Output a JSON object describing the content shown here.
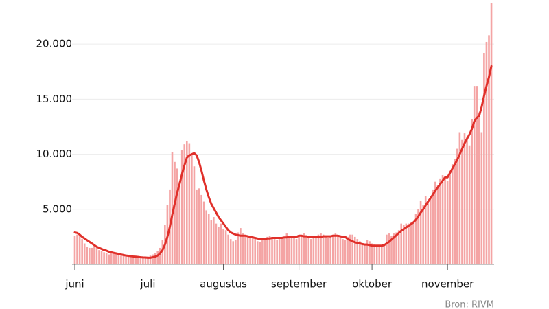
{
  "chart_data": {
    "type": "bar_line",
    "source": "Bron: RIVM",
    "categories": [
      "juni",
      null,
      null,
      null,
      null,
      null,
      null,
      null,
      null,
      null,
      null,
      null,
      null,
      null,
      null,
      null,
      null,
      null,
      null,
      null,
      null,
      null,
      null,
      null,
      null,
      null,
      null,
      null,
      null,
      null,
      "juli",
      null,
      null,
      null,
      null,
      null,
      null,
      null,
      null,
      null,
      null,
      null,
      null,
      null,
      null,
      null,
      null,
      null,
      null,
      null,
      null,
      null,
      null,
      null,
      null,
      null,
      null,
      null,
      null,
      null,
      null,
      "augustus",
      null,
      null,
      null,
      null,
      null,
      null,
      null,
      null,
      null,
      null,
      null,
      null,
      null,
      null,
      null,
      null,
      null,
      null,
      null,
      null,
      null,
      null,
      null,
      null,
      null,
      null,
      null,
      null,
      null,
      null,
      "september",
      null,
      null,
      null,
      null,
      null,
      null,
      null,
      null,
      null,
      null,
      null,
      null,
      null,
      null,
      null,
      null,
      null,
      null,
      null,
      null,
      null,
      null,
      null,
      null,
      null,
      null,
      null,
      null,
      null,
      "oktober",
      null,
      null,
      null,
      null,
      null,
      null,
      null,
      null,
      null,
      null,
      null,
      null,
      null,
      null,
      null,
      null,
      null,
      null,
      null,
      null,
      null,
      null,
      null,
      null,
      null,
      null,
      null,
      null,
      null,
      null,
      "november",
      null,
      null,
      null,
      null,
      null,
      null,
      null,
      null,
      null,
      null,
      null,
      null,
      null,
      null,
      null,
      null,
      null,
      null
    ],
    "series": [
      {
        "type": "bar",
        "color": "#f4a4a4",
        "values": [
          2600,
          2700,
          2600,
          2300,
          1900,
          1600,
          1500,
          1500,
          1700,
          1500,
          1300,
          1200,
          1100,
          1000,
          900,
          1100,
          1000,
          1000,
          900,
          800,
          800,
          700,
          700,
          800,
          700,
          700,
          600,
          600,
          600,
          600,
          700,
          800,
          900,
          1000,
          1200,
          1500,
          2200,
          3600,
          5400,
          6800,
          10200,
          9300,
          8700,
          7500,
          10400,
          10900,
          11200,
          11000,
          10000,
          8900,
          6800,
          6900,
          6300,
          5700,
          4900,
          4600,
          4000,
          4300,
          3700,
          3400,
          3700,
          3200,
          3100,
          2700,
          2300,
          2100,
          2200,
          2900,
          3300,
          2800,
          2600,
          2500,
          2400,
          2600,
          2300,
          2100,
          2000,
          2200,
          2400,
          2500,
          2600,
          2400,
          2300,
          2200,
          2300,
          2400,
          2500,
          2800,
          2600,
          2500,
          2400,
          2300,
          2600,
          2700,
          2800,
          2600,
          2500,
          2300,
          2400,
          2600,
          2700,
          2800,
          2700,
          2500,
          2400,
          2600,
          2700,
          2800,
          2600,
          2500,
          2300,
          2200,
          2500,
          2700,
          2700,
          2500,
          2300,
          2100,
          1800,
          1900,
          2200,
          2100,
          1900,
          1800,
          1700,
          1700,
          1600,
          1700,
          2700,
          2800,
          2600,
          2800,
          2900,
          3100,
          3700,
          3600,
          3700,
          3700,
          3800,
          3900,
          4600,
          5000,
          5800,
          5400,
          6200,
          5600,
          5900,
          6800,
          7500,
          7200,
          7800,
          8100,
          7800,
          7600,
          8500,
          9100,
          9600,
          10500,
          12000,
          11300,
          11900,
          11600,
          10800,
          13200,
          16200,
          16200,
          13800,
          12000,
          19200,
          20200,
          20800,
          23700
        ]
      },
      {
        "type": "line",
        "color": "#e0302a",
        "values": [
          2900,
          2850,
          2700,
          2500,
          2350,
          2200,
          2050,
          1900,
          1750,
          1600,
          1500,
          1400,
          1300,
          1250,
          1150,
          1100,
          1050,
          1000,
          950,
          900,
          850,
          800,
          780,
          750,
          720,
          700,
          680,
          650,
          630,
          620,
          600,
          600,
          650,
          700,
          800,
          1000,
          1300,
          1800,
          2500,
          3400,
          4500,
          5500,
          6500,
          7300,
          8200,
          9000,
          9700,
          9900,
          10000,
          10100,
          9900,
          9300,
          8500,
          7600,
          6800,
          6100,
          5500,
          5100,
          4700,
          4300,
          4000,
          3700,
          3400,
          3100,
          2900,
          2800,
          2700,
          2650,
          2600,
          2600,
          2600,
          2550,
          2500,
          2450,
          2400,
          2350,
          2300,
          2300,
          2300,
          2350,
          2350,
          2400,
          2400,
          2400,
          2400,
          2400,
          2450,
          2450,
          2500,
          2500,
          2500,
          2500,
          2600,
          2600,
          2550,
          2550,
          2500,
          2500,
          2500,
          2500,
          2500,
          2500,
          2550,
          2550,
          2550,
          2550,
          2600,
          2600,
          2600,
          2550,
          2500,
          2500,
          2300,
          2200,
          2100,
          2000,
          1950,
          1900,
          1850,
          1800,
          1800,
          1750,
          1700,
          1700,
          1700,
          1700,
          1700,
          1750,
          1900,
          2050,
          2250,
          2450,
          2650,
          2850,
          3050,
          3200,
          3350,
          3500,
          3650,
          3800,
          4050,
          4350,
          4700,
          5000,
          5350,
          5700,
          6000,
          6350,
          6700,
          7000,
          7300,
          7600,
          7900,
          7900,
          8300,
          8700,
          9100,
          9500,
          10000,
          10500,
          11000,
          11400,
          11800,
          12300,
          13000,
          13300,
          13500,
          14300,
          15300,
          16200,
          17000,
          18000
        ]
      }
    ],
    "ylim": [
      0,
      24000
    ],
    "yticks": [
      {
        "value": 5000,
        "label": "5.000"
      },
      {
        "value": 10000,
        "label": "10.000"
      },
      {
        "value": 15000,
        "label": "15.000"
      },
      {
        "value": 20000,
        "label": "20.000"
      }
    ],
    "grid": true
  }
}
